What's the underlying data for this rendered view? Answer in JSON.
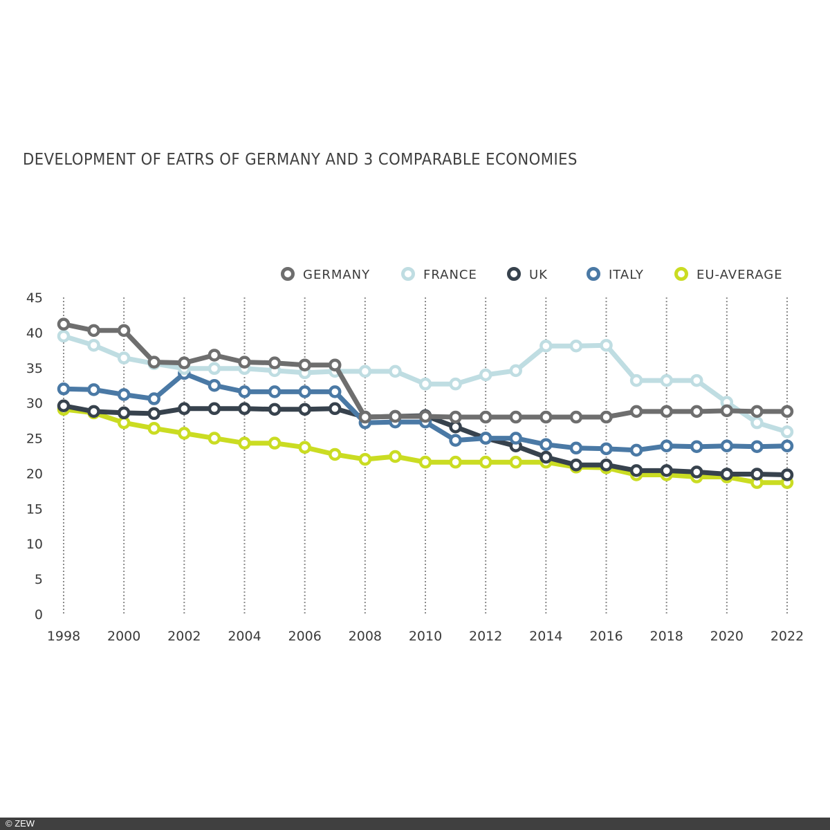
{
  "chart_data": {
    "type": "line",
    "title": "DEVELOPMENT OF EATRS OF GERMANY AND 3 COMPARABLE ECONOMIES",
    "xlabel": "",
    "ylabel": "",
    "x": [
      1998,
      1999,
      2000,
      2001,
      2002,
      2003,
      2004,
      2005,
      2006,
      2007,
      2008,
      2009,
      2010,
      2011,
      2012,
      2013,
      2014,
      2015,
      2016,
      2017,
      2018,
      2019,
      2020,
      2021,
      2022
    ],
    "x_ticks": [
      "1998",
      "2000",
      "2002",
      "2004",
      "2006",
      "2008",
      "2010",
      "2012",
      "2014",
      "2016",
      "2018",
      "2020",
      "2022"
    ],
    "y_ticks": [
      "0",
      "5",
      "10",
      "15",
      "20",
      "25",
      "30",
      "35",
      "40",
      "45"
    ],
    "ylim": [
      0,
      45
    ],
    "xlim": [
      1998,
      2022
    ],
    "grid": "vertical dotted lines at labeled years",
    "legend_position": "top-right",
    "series": [
      {
        "name": "GERMANY",
        "color": "#6e6e6e",
        "values": [
          41.2,
          40.3,
          40.3,
          35.8,
          35.7,
          36.8,
          35.8,
          35.7,
          35.4,
          35.4,
          28.0,
          28.1,
          28.1,
          28.0,
          28.0,
          28.0,
          28.0,
          28.0,
          28.0,
          28.8,
          28.8,
          28.8,
          28.9,
          28.8,
          28.8
        ]
      },
      {
        "name": "FRANCE",
        "color": "#bfdde2",
        "values": [
          39.5,
          38.2,
          36.4,
          35.6,
          34.9,
          34.9,
          34.9,
          34.6,
          34.3,
          34.5,
          34.5,
          34.5,
          32.7,
          32.7,
          34.0,
          34.6,
          38.1,
          38.1,
          38.2,
          33.2,
          33.2,
          33.2,
          30.1,
          27.2,
          25.9
        ]
      },
      {
        "name": "UK",
        "color": "#37424d",
        "values": [
          29.6,
          28.8,
          28.6,
          28.5,
          29.2,
          29.2,
          29.2,
          29.1,
          29.1,
          29.2,
          28.0,
          28.1,
          28.2,
          26.6,
          25.0,
          23.9,
          22.3,
          21.2,
          21.2,
          20.4,
          20.4,
          20.2,
          19.9,
          19.9,
          19.8
        ]
      },
      {
        "name": "ITALY",
        "color": "#4a79a5",
        "values": [
          32.0,
          31.9,
          31.2,
          30.6,
          34.2,
          32.5,
          31.6,
          31.6,
          31.6,
          31.6,
          27.2,
          27.3,
          27.3,
          24.7,
          25.0,
          25.0,
          24.1,
          23.6,
          23.5,
          23.3,
          23.9,
          23.8,
          23.9,
          23.8,
          23.9
        ]
      },
      {
        "name": "EU-AVERAGE",
        "color": "#cadc22",
        "values": [
          29.1,
          28.6,
          27.2,
          26.4,
          25.7,
          25.0,
          24.3,
          24.3,
          23.7,
          22.7,
          22.0,
          22.4,
          21.6,
          21.6,
          21.6,
          21.6,
          21.6,
          20.9,
          20.8,
          19.8,
          19.8,
          19.5,
          19.5,
          18.7,
          18.7
        ]
      }
    ],
    "draw_order": [
      "EU-AVERAGE",
      "UK",
      "ITALY",
      "FRANCE",
      "GERMANY"
    ]
  },
  "footer": {
    "copyright": "© ZEW"
  }
}
